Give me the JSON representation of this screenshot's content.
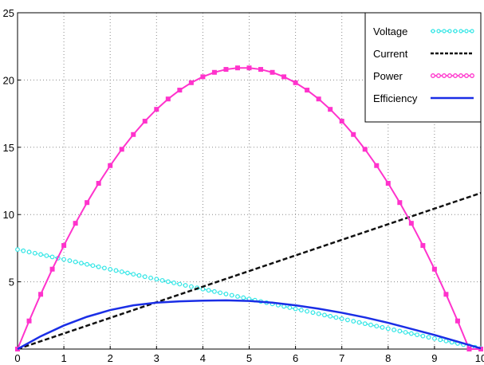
{
  "chart_data": {
    "type": "line",
    "title": "",
    "xlabel": "",
    "ylabel": "",
    "xlim": [
      0,
      10
    ],
    "ylim": [
      0,
      25
    ],
    "grid": true,
    "legend_position": "top-right",
    "x_ticks": [
      0,
      1,
      2,
      3,
      4,
      5,
      6,
      7,
      8,
      9,
      10
    ],
    "y_ticks": [
      5,
      10,
      15,
      20,
      25
    ],
    "series": [
      {
        "name": "Voltage",
        "color": "#33e6e6",
        "style": "dotted-marker",
        "x": [
          0,
          10
        ],
        "y": [
          7.4,
          0.05
        ]
      },
      {
        "name": "Current",
        "color": "#111111",
        "style": "dashed",
        "x": [
          0,
          10
        ],
        "y": [
          0.0,
          11.6
        ]
      },
      {
        "name": "Power",
        "color": "#ff33cc",
        "style": "line-square-marker",
        "x": [
          0,
          0.25,
          0.5,
          0.75,
          1,
          1.25,
          1.5,
          1.75,
          2,
          2.25,
          2.5,
          2.75,
          3,
          3.25,
          3.5,
          3.75,
          4,
          4.25,
          4.5,
          4.75,
          5,
          5.25,
          5.5,
          5.75,
          6,
          6.25,
          6.5,
          6.75,
          7,
          7.25,
          7.5,
          7.75,
          8,
          8.25,
          8.5,
          8.75,
          9,
          9.25,
          9.5,
          9.75,
          10
        ],
        "y": [
          0,
          2.09,
          4.07,
          5.94,
          7.7,
          9.35,
          10.89,
          12.32,
          13.64,
          14.85,
          15.95,
          16.94,
          17.82,
          18.59,
          19.25,
          19.8,
          20.24,
          20.57,
          20.79,
          20.9,
          20.9,
          20.79,
          20.57,
          20.24,
          19.8,
          19.25,
          18.59,
          17.82,
          16.94,
          15.95,
          14.85,
          13.64,
          12.32,
          10.89,
          9.35,
          7.7,
          5.94,
          4.07,
          2.09,
          0.0,
          0.0
        ]
      },
      {
        "name": "Efficiency",
        "color": "#1a2ee6",
        "style": "solid",
        "x": [
          0,
          0.5,
          1,
          1.5,
          2,
          2.5,
          3,
          3.5,
          4,
          4.5,
          5,
          5.5,
          6,
          6.5,
          7,
          7.5,
          8,
          8.5,
          9,
          9.5,
          10
        ],
        "y": [
          0,
          0.95,
          1.75,
          2.4,
          2.9,
          3.25,
          3.45,
          3.55,
          3.6,
          3.62,
          3.58,
          3.45,
          3.25,
          3.0,
          2.7,
          2.35,
          1.95,
          1.5,
          1.05,
          0.55,
          0.05
        ]
      }
    ]
  }
}
